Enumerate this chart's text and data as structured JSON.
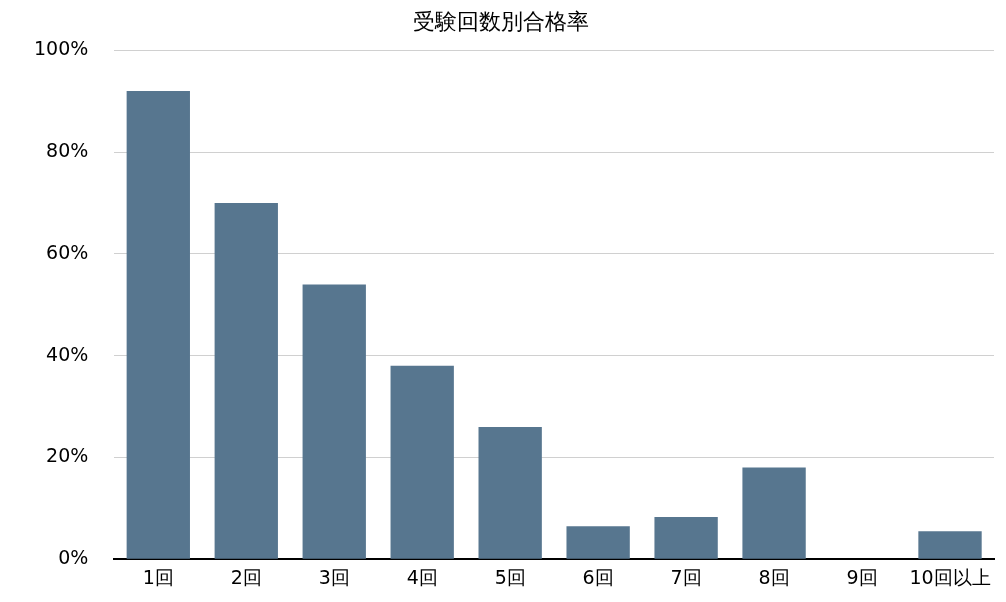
{
  "chart_data": {
    "type": "bar",
    "title": "受験回数別合格率",
    "categories": [
      "1回",
      "2回",
      "3回",
      "4回",
      "5回",
      "6回",
      "7回",
      "8回",
      "9回",
      "10回以上"
    ],
    "values": [
      92,
      70,
      54,
      38,
      26,
      6.5,
      8.3,
      18,
      0,
      5.5
    ],
    "color": "#57768f",
    "ylim": [
      0,
      100
    ],
    "yticks": [
      {
        "value": 0,
        "label": "0%"
      },
      {
        "value": 20,
        "label": "20%"
      },
      {
        "value": 40,
        "label": "40%"
      },
      {
        "value": 60,
        "label": "60%"
      },
      {
        "value": 80,
        "label": "80%"
      },
      {
        "value": 100,
        "label": "100%"
      }
    ],
    "grid": "y"
  }
}
